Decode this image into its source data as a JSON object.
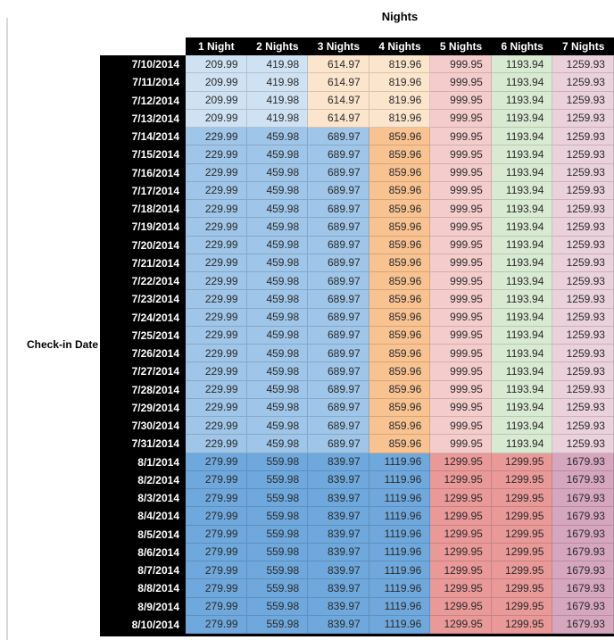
{
  "page": {
    "title": "Nights",
    "row_axis_label": "Check-in Date"
  },
  "table": {
    "column_headers": [
      "1 Night",
      "2 Nights",
      "3 Nights",
      "4 Nights",
      "5 Nights",
      "6 Nights",
      "7 Nights"
    ],
    "rows": [
      {
        "date": "7/10/2014",
        "band": "low",
        "values": [
          "209.99",
          "419.98",
          "614.97",
          "819.96",
          "999.95",
          "1193.94",
          "1259.93"
        ]
      },
      {
        "date": "7/11/2014",
        "band": "low",
        "values": [
          "209.99",
          "419.98",
          "614.97",
          "819.96",
          "999.95",
          "1193.94",
          "1259.93"
        ]
      },
      {
        "date": "7/12/2014",
        "band": "low",
        "values": [
          "209.99",
          "419.98",
          "614.97",
          "819.96",
          "999.95",
          "1193.94",
          "1259.93"
        ]
      },
      {
        "date": "7/13/2014",
        "band": "low",
        "values": [
          "209.99",
          "419.98",
          "614.97",
          "819.96",
          "999.95",
          "1193.94",
          "1259.93"
        ]
      },
      {
        "date": "7/14/2014",
        "band": "mid",
        "values": [
          "229.99",
          "459.98",
          "689.97",
          "859.96",
          "999.95",
          "1193.94",
          "1259.93"
        ]
      },
      {
        "date": "7/15/2014",
        "band": "mid",
        "values": [
          "229.99",
          "459.98",
          "689.97",
          "859.96",
          "999.95",
          "1193.94",
          "1259.93"
        ]
      },
      {
        "date": "7/16/2014",
        "band": "mid",
        "values": [
          "229.99",
          "459.98",
          "689.97",
          "859.96",
          "999.95",
          "1193.94",
          "1259.93"
        ]
      },
      {
        "date": "7/17/2014",
        "band": "mid",
        "values": [
          "229.99",
          "459.98",
          "689.97",
          "859.96",
          "999.95",
          "1193.94",
          "1259.93"
        ]
      },
      {
        "date": "7/18/2014",
        "band": "mid",
        "values": [
          "229.99",
          "459.98",
          "689.97",
          "859.96",
          "999.95",
          "1193.94",
          "1259.93"
        ]
      },
      {
        "date": "7/19/2014",
        "band": "mid",
        "values": [
          "229.99",
          "459.98",
          "689.97",
          "859.96",
          "999.95",
          "1193.94",
          "1259.93"
        ]
      },
      {
        "date": "7/20/2014",
        "band": "mid",
        "values": [
          "229.99",
          "459.98",
          "689.97",
          "859.96",
          "999.95",
          "1193.94",
          "1259.93"
        ]
      },
      {
        "date": "7/21/2014",
        "band": "mid",
        "values": [
          "229.99",
          "459.98",
          "689.97",
          "859.96",
          "999.95",
          "1193.94",
          "1259.93"
        ]
      },
      {
        "date": "7/22/2014",
        "band": "mid",
        "values": [
          "229.99",
          "459.98",
          "689.97",
          "859.96",
          "999.95",
          "1193.94",
          "1259.93"
        ]
      },
      {
        "date": "7/23/2014",
        "band": "mid",
        "values": [
          "229.99",
          "459.98",
          "689.97",
          "859.96",
          "999.95",
          "1193.94",
          "1259.93"
        ]
      },
      {
        "date": "7/24/2014",
        "band": "mid",
        "values": [
          "229.99",
          "459.98",
          "689.97",
          "859.96",
          "999.95",
          "1193.94",
          "1259.93"
        ]
      },
      {
        "date": "7/25/2014",
        "band": "mid",
        "values": [
          "229.99",
          "459.98",
          "689.97",
          "859.96",
          "999.95",
          "1193.94",
          "1259.93"
        ]
      },
      {
        "date": "7/26/2014",
        "band": "mid",
        "values": [
          "229.99",
          "459.98",
          "689.97",
          "859.96",
          "999.95",
          "1193.94",
          "1259.93"
        ]
      },
      {
        "date": "7/27/2014",
        "band": "mid",
        "values": [
          "229.99",
          "459.98",
          "689.97",
          "859.96",
          "999.95",
          "1193.94",
          "1259.93"
        ]
      },
      {
        "date": "7/28/2014",
        "band": "mid",
        "values": [
          "229.99",
          "459.98",
          "689.97",
          "859.96",
          "999.95",
          "1193.94",
          "1259.93"
        ]
      },
      {
        "date": "7/29/2014",
        "band": "mid",
        "values": [
          "229.99",
          "459.98",
          "689.97",
          "859.96",
          "999.95",
          "1193.94",
          "1259.93"
        ]
      },
      {
        "date": "7/30/2014",
        "band": "mid",
        "values": [
          "229.99",
          "459.98",
          "689.97",
          "859.96",
          "999.95",
          "1193.94",
          "1259.93"
        ]
      },
      {
        "date": "7/31/2014",
        "band": "mid",
        "values": [
          "229.99",
          "459.98",
          "689.97",
          "859.96",
          "999.95",
          "1193.94",
          "1259.93"
        ]
      },
      {
        "date": "8/1/2014",
        "band": "high",
        "values": [
          "279.99",
          "559.98",
          "839.97",
          "1119.96",
          "1299.95",
          "1299.95",
          "1679.93"
        ]
      },
      {
        "date": "8/2/2014",
        "band": "high",
        "values": [
          "279.99",
          "559.98",
          "839.97",
          "1119.96",
          "1299.95",
          "1299.95",
          "1679.93"
        ]
      },
      {
        "date": "8/3/2014",
        "band": "high",
        "values": [
          "279.99",
          "559.98",
          "839.97",
          "1119.96",
          "1299.95",
          "1299.95",
          "1679.93"
        ]
      },
      {
        "date": "8/4/2014",
        "band": "high",
        "values": [
          "279.99",
          "559.98",
          "839.97",
          "1119.96",
          "1299.95",
          "1299.95",
          "1679.93"
        ]
      },
      {
        "date": "8/5/2014",
        "band": "high",
        "values": [
          "279.99",
          "559.98",
          "839.97",
          "1119.96",
          "1299.95",
          "1299.95",
          "1679.93"
        ]
      },
      {
        "date": "8/6/2014",
        "band": "high",
        "values": [
          "279.99",
          "559.98",
          "839.97",
          "1119.96",
          "1299.95",
          "1299.95",
          "1679.93"
        ]
      },
      {
        "date": "8/7/2014",
        "band": "high",
        "values": [
          "279.99",
          "559.98",
          "839.97",
          "1119.96",
          "1299.95",
          "1299.95",
          "1679.93"
        ]
      },
      {
        "date": "8/8/2014",
        "band": "high",
        "values": [
          "279.99",
          "559.98",
          "839.97",
          "1119.96",
          "1299.95",
          "1299.95",
          "1679.93"
        ]
      },
      {
        "date": "8/9/2014",
        "band": "high",
        "values": [
          "279.99",
          "559.98",
          "839.97",
          "1119.96",
          "1299.95",
          "1299.95",
          "1679.93"
        ]
      },
      {
        "date": "8/10/2014",
        "band": "high",
        "values": [
          "279.99",
          "559.98",
          "839.97",
          "1119.96",
          "1299.95",
          "1299.95",
          "1679.93"
        ]
      }
    ]
  },
  "colors": {
    "header_bg": "#000000",
    "header_text": "#ffffff",
    "date_bg": "#000000",
    "date_text": "#ffffff",
    "value_text": "#2a2a2a",
    "bands": {
      "low": [
        "#cfe2f3",
        "#cfe2f3",
        "#fce5cd",
        "#fce5cd",
        "#f4cccc",
        "#d9ead3",
        "#ead1dc"
      ],
      "mid": [
        "#9fc5e8",
        "#9fc5e8",
        "#9fc5e8",
        "#f8c291",
        "#f4cccc",
        "#d9ead3",
        "#ead1dc"
      ],
      "high": [
        "#6fa8dc",
        "#6fa8dc",
        "#6fa8dc",
        "#6fa8dc",
        "#ea9999",
        "#ea9999",
        "#d5a6bd"
      ]
    }
  }
}
